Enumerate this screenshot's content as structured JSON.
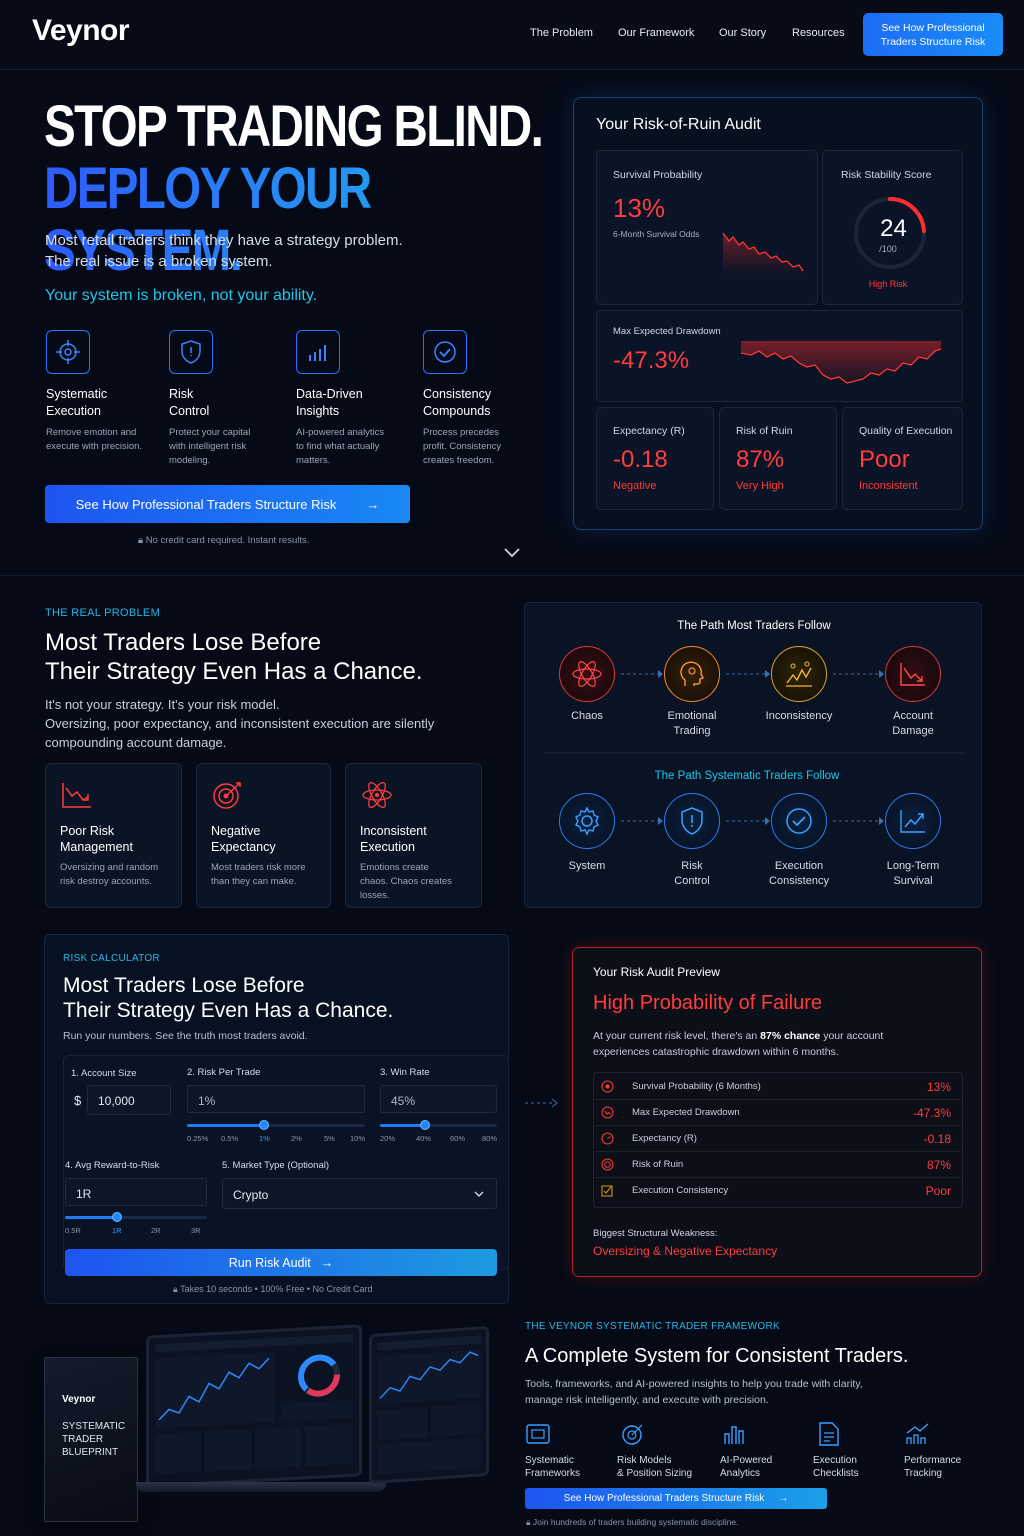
{
  "nav": {
    "logo": "Veynor",
    "links": [
      "The Problem",
      "Our Framework",
      "Our Story",
      "Resources"
    ],
    "cta_line1": "See How Professional",
    "cta_line2": "Traders Structure Risk"
  },
  "hero": {
    "headline1": "STOP TRADING BLIND.",
    "headline2": "DEPLOY YOUR SYSTEM.",
    "lead1": "Most retail traders think they have a strategy problem.",
    "lead2": "The real issue is a broken system.",
    "accent": "Your system is broken, not your ability.",
    "pillars": [
      {
        "icon": "target-icon",
        "title1": "Systematic",
        "title2": "Execution",
        "desc1": "Remove emotion and",
        "desc2": "execute with precision.",
        "desc3": ""
      },
      {
        "icon": "shield-icon",
        "title1": "Risk",
        "title2": "Control",
        "desc1": "Protect your capital",
        "desc2": "with intelligent risk",
        "desc3": "modeling."
      },
      {
        "icon": "bar-chart-icon",
        "title1": "Data-Driven",
        "title2": "Insights",
        "desc1": "AI-powered analytics",
        "desc2": "to find what actually",
        "desc3": "matters."
      },
      {
        "icon": "check-circle-icon",
        "title1": "Consistency",
        "title2": "Compounds",
        "desc1": "Process precedes",
        "desc2": "profit. Consistency",
        "desc3": "creates freedom."
      }
    ],
    "cta": "See How Professional Traders Structure Risk",
    "note": "No credit card required. Instant results."
  },
  "audit": {
    "title": "Your Risk-of-Ruin Audit",
    "survival": {
      "label": "Survival Probability",
      "value": "13%",
      "sub": "6-Month Survival Odds"
    },
    "stability": {
      "label": "Risk Stability Score",
      "value": "24",
      "max": "/100",
      "status": "High Risk",
      "fraction": 0.24
    },
    "drawdown": {
      "label": "Max Expected Drawdown",
      "value": "-47.3%"
    },
    "expectancy": {
      "label": "Expectancy (R)",
      "value": "-0.18",
      "status": "Negative"
    },
    "ruin": {
      "label": "Risk of Ruin",
      "value": "87%",
      "status": "Very High"
    },
    "quality": {
      "label": "Quality of Execution",
      "value": "Poor",
      "status": "Inconsistent"
    }
  },
  "problem": {
    "eyebrow": "THE REAL PROBLEM",
    "title1": "Most Traders Lose Before",
    "title2": "Their Strategy Even Has a Chance.",
    "body1": "It's not your strategy. It's your risk model.",
    "body2": "Oversizing, poor expectancy, and inconsistent execution are silently",
    "body3": "compounding account damage.",
    "cards": [
      {
        "icon": "falling-chart-icon",
        "title1": "Poor Risk",
        "title2": "Management",
        "desc1": "Oversizing and random",
        "desc2": "risk destroy accounts.",
        "desc3": ""
      },
      {
        "icon": "target-icon",
        "title1": "Negative",
        "title2": "Expectancy",
        "desc1": "Most traders risk more",
        "desc2": "than they can make.",
        "desc3": ""
      },
      {
        "icon": "atom-icon",
        "title1": "Inconsistent",
        "title2": "Execution",
        "desc1": "Emotions create",
        "desc2": "chaos. Chaos creates",
        "desc3": "losses."
      }
    ]
  },
  "paths": {
    "bad_title": "The Path Most Traders Follow",
    "bad": [
      [
        "Chaos",
        ""
      ],
      [
        "Emotional",
        "Trading"
      ],
      [
        "Inconsistency",
        ""
      ],
      [
        "Account",
        "Damage"
      ]
    ],
    "good_title": "The Path Systematic Traders Follow",
    "good": [
      [
        "System",
        ""
      ],
      [
        "Risk",
        "Control"
      ],
      [
        "Execution",
        "Consistency"
      ],
      [
        "Long-Term",
        "Survival"
      ]
    ]
  },
  "calc": {
    "eyebrow": "RISK CALCULATOR",
    "title1": "Most Traders Lose Before",
    "title2": "Their Strategy Even Has a Chance.",
    "sub": "Run your numbers. See the truth most traders avoid.",
    "account_label": "1. Account Size",
    "currency": "$",
    "account_value": "10,000",
    "risk_label": "2. Risk Per Trade",
    "risk_value": "1%",
    "risk_ticks": [
      "0.25%",
      "0.5%",
      "1%",
      "2%",
      "5%",
      "10%"
    ],
    "win_label": "3. Win Rate",
    "win_value": "45%",
    "win_ticks": [
      "20%",
      "40%",
      "60%",
      "80%"
    ],
    "rr_label": "4. Avg Reward-to-Risk",
    "rr_value": "1R",
    "rr_ticks": [
      "0.5R",
      "1R",
      "2R",
      "3R"
    ],
    "market_label": "5. Market Type",
    "market_optional": "(Optional)",
    "market_value": "Crypto",
    "cta": "Run Risk Audit",
    "note": "Takes 10 seconds • 100% Free • No Credit Card"
  },
  "preview": {
    "title": "Your Risk Audit Preview",
    "headline": "High Probability of Failure",
    "desc_a": "At your current risk level, there's an ",
    "desc_b": "87% chance",
    "desc_c": " your account",
    "desc2": "experiences catastrophic drawdown within 6 months.",
    "rows": [
      [
        "Survival Probability (6 Months)",
        "13%"
      ],
      [
        "Max Expected Drawdown",
        "-47.3%"
      ],
      [
        "Expectancy (R)",
        "-0.18"
      ],
      [
        "Risk of Ruin",
        "87%"
      ],
      [
        "Execution Consistency",
        "Poor"
      ]
    ],
    "weak_label": "Biggest Structural Weakness:",
    "weak_value": "Oversizing & Negative Expectancy"
  },
  "framework": {
    "eyebrow": "THE VEYNOR SYSTEMATIC TRADER FRAMEWORK",
    "title": "A Complete System for Consistent Traders.",
    "body1": "Tools, frameworks, and AI-powered insights to help you trade with clarity,",
    "body2": "manage risk intelligently, and execute with precision.",
    "items": [
      [
        "Systematic",
        "Frameworks"
      ],
      [
        "Risk Models",
        "& Position Sizing"
      ],
      [
        "AI-Powered",
        "Analytics"
      ],
      [
        "Execution",
        "Checklists"
      ],
      [
        "Performance",
        "Tracking"
      ]
    ],
    "cta": "See How Professional Traders Structure Risk",
    "note": "Join hundreds of traders building systematic discipline.",
    "book_brand": "Veynor",
    "book_t1": "SYSTEMATIC",
    "book_t2": "TRADER",
    "book_t3": "BLUEPRINT"
  },
  "colors": {
    "accent_blue": "#1d6cf5",
    "accent_cyan": "#22c4e8",
    "danger": "#ff3b3b",
    "background": "#050a16"
  }
}
